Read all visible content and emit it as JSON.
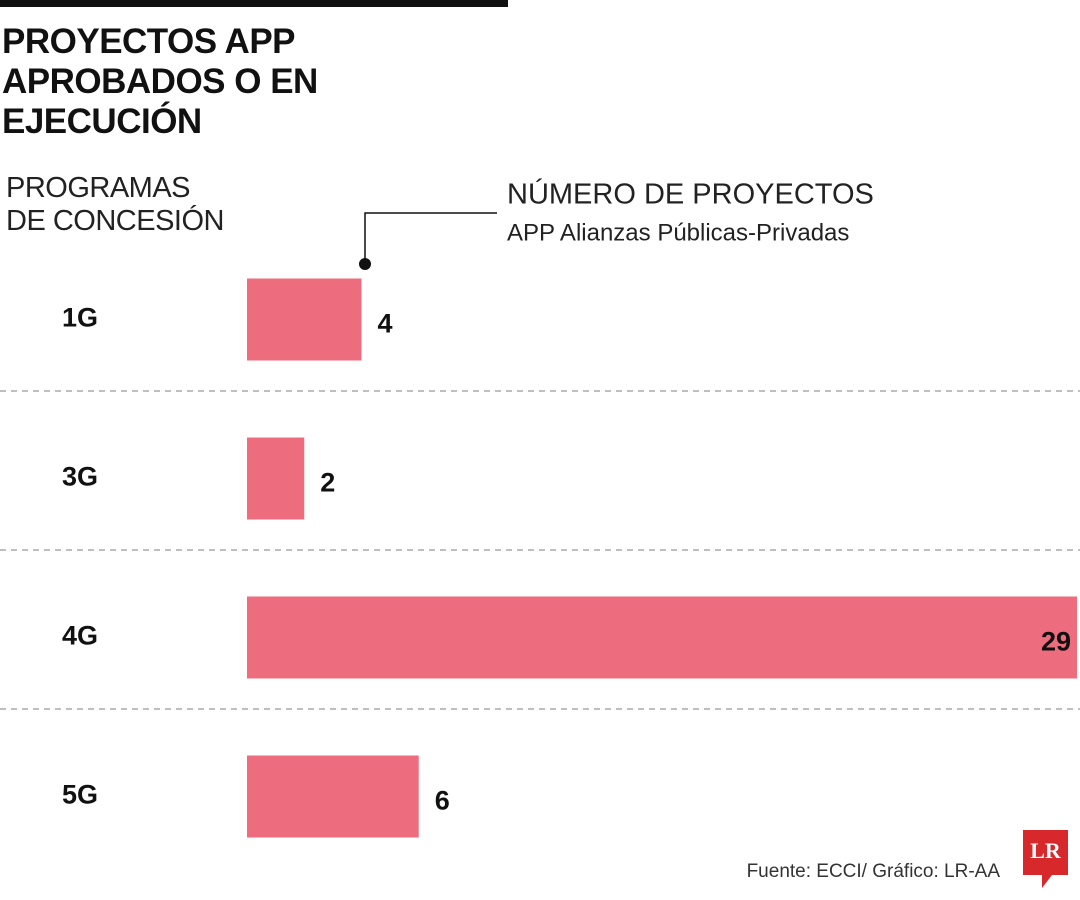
{
  "chart_data": {
    "type": "bar",
    "orientation": "horizontal",
    "title": "PROYECTOS APP APROBADOS O EN EJECUCIÓN",
    "category_label": "PROGRAMAS DE CONCESIÓN",
    "annotation_title": "NÚMERO DE PROYECTOS",
    "annotation_subtitle": "APP Alianzas Públicas-Privadas",
    "categories": [
      "1G",
      "3G",
      "4G",
      "5G"
    ],
    "values": [
      4,
      2,
      29,
      6
    ],
    "color": "#ed6d7e",
    "source": "Fuente: ECCI/ Gráfico: LR-AA",
    "logo": "LR"
  }
}
